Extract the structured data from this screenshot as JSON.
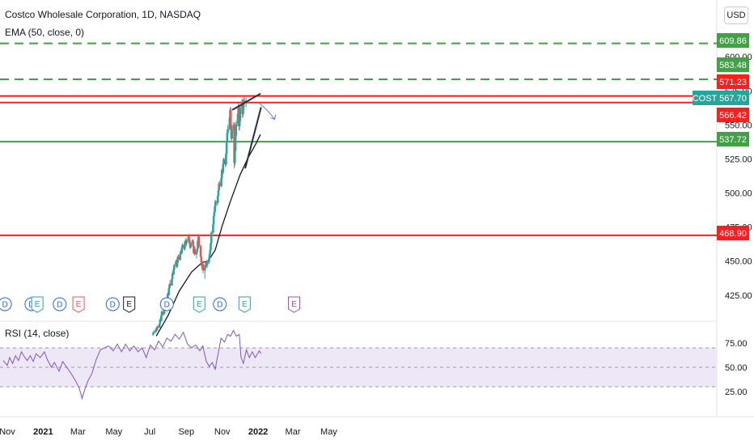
{
  "header": {
    "title": "Costco Wholesale Corporation, 1D, NASDAQ",
    "indicator": "EMA (50, close, 0)",
    "currency": "USD"
  },
  "rsi": {
    "label": "RSI (14, close)",
    "levels": [
      75,
      50,
      25
    ],
    "overbought": 70,
    "oversold": 30
  },
  "colors": {
    "up": "#26a69a",
    "down": "#ef5350",
    "green_level": "#43a047",
    "red_level": "#ff1e1e",
    "ema": "#131722",
    "rsi_line": "#7e57c2",
    "rsi_band": "#ede7f6",
    "dividend": "#2962ff",
    "earnings_green": "#26a69a",
    "earnings_red": "#ef5350",
    "earnings_gray": "#131722",
    "earnings_purple": "#ab47bc"
  },
  "chart_data": {
    "type": "candlestick",
    "symbol": "COST",
    "timeframe": "1D",
    "exchange": "NASDAQ",
    "y_ticks": [
      425.0,
      450.0,
      475.0,
      500.0,
      525.0,
      550.0,
      575.0,
      600.0
    ],
    "y_tick_labels": [
      "425.00",
      "450.00",
      "475.00",
      "500.00",
      "525.00",
      "550.00",
      "575.00",
      "600.00"
    ],
    "x_labels": [
      "Nov",
      "2021",
      "Mar",
      "May",
      "Jul",
      "Sep",
      "Nov",
      "2022",
      "Mar",
      "May"
    ],
    "bold_x_labels": [
      "2021",
      "2022"
    ],
    "last_price": 567.7,
    "price_tags": [
      {
        "label": "COST",
        "value": "567.70",
        "price": 567.7,
        "color": "#26a69a"
      },
      {
        "value": "609.86",
        "price": 609.86,
        "color": "#43a047"
      },
      {
        "value": "583.48",
        "price": 583.48,
        "color": "#43a047"
      },
      {
        "value": "571.23",
        "price": 571.23,
        "color": "#ff1e1e"
      },
      {
        "value": "566.42",
        "price": 566.42,
        "color": "#ff1e1e"
      },
      {
        "value": "537.72",
        "price": 537.72,
        "color": "#43a047"
      },
      {
        "value": "468.90",
        "price": 468.9,
        "color": "#ff1e1e"
      }
    ],
    "horizontal_levels": [
      {
        "price": 609.86,
        "color": "#43a047",
        "style": "dashed"
      },
      {
        "price": 583.48,
        "color": "#43a047",
        "style": "dashed"
      },
      {
        "price": 571.23,
        "color": "#ff1e1e",
        "style": "solid"
      },
      {
        "price": 566.42,
        "color": "#ff1e1e",
        "style": "solid"
      },
      {
        "price": 537.72,
        "color": "#43a047",
        "style": "solid"
      },
      {
        "price": 468.9,
        "color": "#ff1e1e",
        "style": "solid"
      }
    ],
    "trendlines": [
      {
        "from": [
          "2021-11-18",
          561
        ],
        "to": [
          "2022-01-05",
          573
        ]
      },
      {
        "from": [
          "2021-12-10",
          518
        ],
        "to": [
          "2022-01-06",
          563
        ]
      }
    ],
    "candles_start": "2021-07-01",
    "candles": [
      [
        396,
        397,
        395,
        397
      ],
      [
        397,
        399,
        396,
        398
      ],
      [
        398,
        399,
        397,
        399
      ],
      [
        399,
        401,
        398,
        400
      ],
      [
        400,
        400,
        398,
        399
      ],
      [
        399,
        402,
        399,
        402
      ],
      [
        402,
        403,
        400,
        401
      ],
      [
        401,
        404,
        401,
        404
      ],
      [
        404,
        408,
        403,
        407
      ],
      [
        407,
        409,
        405,
        406
      ],
      [
        406,
        411,
        406,
        410
      ],
      [
        410,
        414,
        409,
        413
      ],
      [
        413,
        414,
        410,
        411
      ],
      [
        411,
        416,
        411,
        415
      ],
      [
        415,
        420,
        414,
        419
      ],
      [
        419,
        421,
        417,
        418
      ],
      [
        418,
        423,
        418,
        422
      ],
      [
        422,
        427,
        421,
        426
      ],
      [
        426,
        429,
        424,
        425
      ],
      [
        425,
        431,
        425,
        430
      ],
      [
        430,
        434,
        429,
        433
      ],
      [
        433,
        436,
        431,
        432
      ],
      [
        432,
        438,
        432,
        437
      ],
      [
        437,
        442,
        436,
        441
      ],
      [
        441,
        443,
        439,
        440
      ],
      [
        440,
        445,
        440,
        444
      ],
      [
        444,
        448,
        443,
        447
      ],
      [
        447,
        451,
        446,
        450
      ],
      [
        450,
        451,
        445,
        446
      ],
      [
        446,
        450,
        445,
        449
      ],
      [
        449,
        454,
        448,
        453
      ],
      [
        453,
        455,
        450,
        451
      ],
      [
        451,
        456,
        450,
        455
      ],
      [
        455,
        458,
        453,
        457
      ],
      [
        457,
        460,
        455,
        456
      ],
      [
        456,
        461,
        455,
        460
      ],
      [
        460,
        463,
        458,
        462
      ],
      [
        462,
        464,
        458,
        459
      ],
      [
        459,
        463,
        458,
        462
      ],
      [
        462,
        466,
        461,
        465
      ],
      [
        465,
        467,
        462,
        463
      ],
      [
        463,
        466,
        461,
        465
      ],
      [
        465,
        469,
        464,
        468
      ],
      [
        468,
        470,
        465,
        466
      ],
      [
        466,
        468,
        462,
        463
      ],
      [
        463,
        465,
        459,
        460
      ],
      [
        460,
        464,
        459,
        463
      ],
      [
        463,
        466,
        462,
        465
      ],
      [
        465,
        466,
        460,
        461
      ],
      [
        461,
        462,
        455,
        456
      ],
      [
        456,
        460,
        455,
        459
      ],
      [
        459,
        461,
        454,
        455
      ],
      [
        455,
        458,
        452,
        457
      ],
      [
        457,
        460,
        456,
        459
      ],
      [
        459,
        466,
        458,
        465
      ],
      [
        465,
        470,
        464,
        468
      ],
      [
        468,
        469,
        460,
        461
      ],
      [
        461,
        462,
        452,
        453
      ],
      [
        453,
        455,
        447,
        449
      ],
      [
        449,
        451,
        444,
        446
      ],
      [
        446,
        450,
        445,
        448
      ],
      [
        448,
        449,
        441,
        443
      ],
      [
        443,
        447,
        437,
        445
      ],
      [
        445,
        449,
        444,
        447
      ],
      [
        447,
        450,
        445,
        449
      ],
      [
        449,
        451,
        446,
        447
      ],
      [
        447,
        450,
        445,
        449
      ],
      [
        449,
        453,
        448,
        452
      ],
      [
        452,
        456,
        451,
        455
      ],
      [
        455,
        459,
        454,
        458
      ],
      [
        458,
        464,
        457,
        463
      ],
      [
        463,
        472,
        462,
        471
      ],
      [
        471,
        478,
        470,
        477
      ],
      [
        477,
        484,
        476,
        483
      ],
      [
        483,
        487,
        481,
        486
      ],
      [
        486,
        491,
        485,
        490
      ],
      [
        490,
        495,
        488,
        494
      ],
      [
        494,
        497,
        491,
        493
      ],
      [
        493,
        499,
        492,
        498
      ],
      [
        498,
        503,
        497,
        502
      ],
      [
        502,
        508,
        501,
        507
      ],
      [
        507,
        509,
        503,
        505
      ],
      [
        505,
        512,
        504,
        511
      ],
      [
        511,
        518,
        510,
        517
      ],
      [
        517,
        520,
        513,
        515
      ],
      [
        515,
        522,
        514,
        521
      ],
      [
        521,
        526,
        519,
        525
      ],
      [
        525,
        527,
        519,
        521
      ],
      [
        521,
        530,
        520,
        529
      ],
      [
        529,
        538,
        528,
        537
      ],
      [
        537,
        545,
        536,
        544
      ],
      [
        544,
        550,
        541,
        547
      ],
      [
        547,
        556,
        546,
        555
      ],
      [
        555,
        563,
        553,
        561
      ],
      [
        561,
        563,
        548,
        550
      ],
      [
        550,
        552,
        538,
        540
      ],
      [
        540,
        548,
        539,
        546
      ],
      [
        546,
        552,
        544,
        550
      ],
      [
        550,
        552,
        518,
        522
      ],
      [
        522,
        533,
        520,
        531
      ],
      [
        531,
        544,
        530,
        542
      ],
      [
        542,
        553,
        540,
        551
      ],
      [
        551,
        560,
        549,
        558
      ],
      [
        558,
        566,
        555,
        563
      ],
      [
        563,
        565,
        546,
        549
      ],
      [
        549,
        555,
        546,
        553
      ],
      [
        553,
        564,
        551,
        562
      ],
      [
        562,
        569,
        560,
        567
      ],
      [
        567,
        569,
        555,
        558
      ],
      [
        558,
        566,
        556,
        564
      ],
      [
        564,
        570,
        561,
        568
      ],
      [
        568,
        571,
        563,
        566
      ],
      [
        566,
        570,
        563,
        567.7
      ]
    ],
    "ema50": [
      [
        "2021-07-12",
        395
      ],
      [
        "2021-08-01",
        410
      ],
      [
        "2021-08-20",
        428
      ],
      [
        "2021-09-10",
        442
      ],
      [
        "2021-09-28",
        449
      ],
      [
        "2021-10-08",
        450
      ],
      [
        "2021-10-20",
        458
      ],
      [
        "2021-11-01",
        476
      ],
      [
        "2021-11-15",
        494
      ],
      [
        "2021-12-01",
        513
      ],
      [
        "2021-12-15",
        526
      ],
      [
        "2021-12-28",
        536
      ],
      [
        "2022-01-05",
        543
      ]
    ],
    "rsi_series": [
      [
        "2020-10-25",
        57
      ],
      [
        "2020-11-01",
        52
      ],
      [
        "2020-11-05",
        60
      ],
      [
        "2020-11-10",
        54
      ],
      [
        "2020-11-15",
        62
      ],
      [
        "2020-11-20",
        57
      ],
      [
        "2020-11-25",
        66
      ],
      [
        "2020-12-01",
        60
      ],
      [
        "2020-12-05",
        57
      ],
      [
        "2020-12-10",
        62
      ],
      [
        "2020-12-15",
        56
      ],
      [
        "2020-12-20",
        64
      ],
      [
        "2020-12-27",
        60
      ],
      [
        "2021-01-03",
        66
      ],
      [
        "2021-01-08",
        58
      ],
      [
        "2021-01-15",
        50
      ],
      [
        "2021-01-20",
        55
      ],
      [
        "2021-01-28",
        46
      ],
      [
        "2021-02-03",
        56
      ],
      [
        "2021-02-10",
        50
      ],
      [
        "2021-02-17",
        44
      ],
      [
        "2021-02-25",
        36
      ],
      [
        "2021-03-03",
        29
      ],
      [
        "2021-03-08",
        18
      ],
      [
        "2021-03-12",
        26
      ],
      [
        "2021-03-18",
        36
      ],
      [
        "2021-03-25",
        44
      ],
      [
        "2021-04-01",
        58
      ],
      [
        "2021-04-08",
        68
      ],
      [
        "2021-04-15",
        70
      ],
      [
        "2021-04-22",
        72
      ],
      [
        "2021-04-30",
        67
      ],
      [
        "2021-05-07",
        74
      ],
      [
        "2021-05-14",
        66
      ],
      [
        "2021-05-21",
        74
      ],
      [
        "2021-05-28",
        67
      ],
      [
        "2021-06-04",
        72
      ],
      [
        "2021-06-11",
        66
      ],
      [
        "2021-06-18",
        70
      ],
      [
        "2021-06-25",
        60
      ],
      [
        "2021-07-02",
        73
      ],
      [
        "2021-07-09",
        68
      ],
      [
        "2021-07-16",
        77
      ],
      [
        "2021-07-23",
        71
      ],
      [
        "2021-07-30",
        80
      ],
      [
        "2021-08-06",
        77
      ],
      [
        "2021-08-13",
        84
      ],
      [
        "2021-08-20",
        79
      ],
      [
        "2021-08-27",
        86
      ],
      [
        "2021-09-03",
        74
      ],
      [
        "2021-09-10",
        70
      ],
      [
        "2021-09-17",
        73
      ],
      [
        "2021-09-24",
        67
      ],
      [
        "2021-09-29",
        72
      ],
      [
        "2021-10-05",
        56
      ],
      [
        "2021-10-10",
        51
      ],
      [
        "2021-10-15",
        55
      ],
      [
        "2021-10-20",
        48
      ],
      [
        "2021-10-25",
        64
      ],
      [
        "2021-10-30",
        80
      ],
      [
        "2021-11-05",
        76
      ],
      [
        "2021-11-10",
        84
      ],
      [
        "2021-11-15",
        82
      ],
      [
        "2021-11-20",
        88
      ],
      [
        "2021-11-25",
        82
      ],
      [
        "2021-11-30",
        84
      ],
      [
        "2021-12-03",
        60
      ],
      [
        "2021-12-07",
        54
      ],
      [
        "2021-12-12",
        68
      ],
      [
        "2021-12-17",
        60
      ],
      [
        "2021-12-22",
        66
      ],
      [
        "2021-12-27",
        60
      ],
      [
        "2022-01-03",
        67
      ],
      [
        "2022-01-06",
        64
      ]
    ],
    "events": [
      {
        "date": "2020-10-28",
        "kind": "D"
      },
      {
        "date": "2020-12-12",
        "kind": "D"
      },
      {
        "date": "2020-12-22",
        "kind": "E",
        "color": "green"
      },
      {
        "date": "2021-01-29",
        "kind": "D"
      },
      {
        "date": "2021-03-02",
        "kind": "E",
        "color": "red"
      },
      {
        "date": "2021-04-29",
        "kind": "D"
      },
      {
        "date": "2021-05-27",
        "kind": "E",
        "color": "gray"
      },
      {
        "date": "2021-07-30",
        "kind": "D"
      },
      {
        "date": "2021-09-23",
        "kind": "E",
        "color": "green"
      },
      {
        "date": "2021-10-28",
        "kind": "D"
      },
      {
        "date": "2021-12-09",
        "kind": "E",
        "color": "green"
      },
      {
        "date": "2022-03-03",
        "kind": "E",
        "color": "purple"
      }
    ]
  }
}
